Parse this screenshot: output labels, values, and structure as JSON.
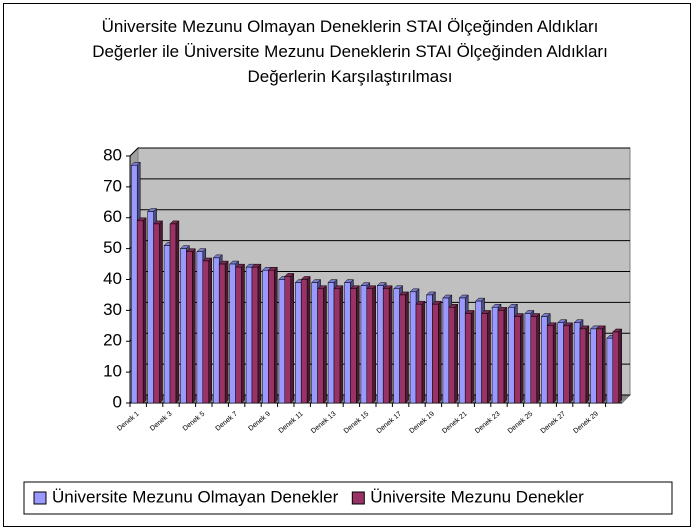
{
  "chart_data": {
    "type": "bar",
    "title": "Üniversite Mezunu Olmayan Deneklerin STAI Ölçeğinden Aldıkları Değerler ile Üniversite Mezunu Deneklerin STAI Ölçeğinden Aldıkları Değerlerin Karşılaştırılması",
    "categories": [
      "Denek 1",
      null,
      "Denek 3",
      null,
      "Denek 5",
      null,
      "Denek 7",
      null,
      "Denek 9",
      null,
      "Denek 11",
      null,
      "Denek 13",
      null,
      "Denek 15",
      null,
      "Denek 17",
      null,
      "Denek 19",
      null,
      "Denek 21",
      null,
      "Denek 23",
      null,
      "Denek 25",
      null,
      "Denek 27",
      null,
      "Denek 29",
      null
    ],
    "series": [
      {
        "name": "Üniversite Mezunu Olmayan Denekler",
        "color": "#9999ff",
        "values": [
          77,
          62,
          51,
          50,
          49,
          47,
          45,
          44,
          43,
          40,
          39,
          39,
          39,
          39,
          38,
          38,
          37,
          36,
          35,
          34,
          34,
          33,
          31,
          31,
          29,
          28,
          26,
          26,
          24,
          21
        ]
      },
      {
        "name": "Üniversite Mezunu Denekler",
        "color": "#993366",
        "values": [
          59,
          58,
          58,
          49,
          46,
          45,
          44,
          44,
          43,
          41,
          40,
          37,
          37,
          37,
          37,
          37,
          35,
          32,
          32,
          31,
          29,
          29,
          30,
          28,
          28,
          25,
          25,
          24,
          24,
          23
        ]
      }
    ],
    "ylim": [
      0,
      80
    ],
    "yticks": [
      0,
      10,
      20,
      30,
      40,
      50,
      60,
      70,
      80
    ],
    "grid": true,
    "legend": "bottom"
  }
}
